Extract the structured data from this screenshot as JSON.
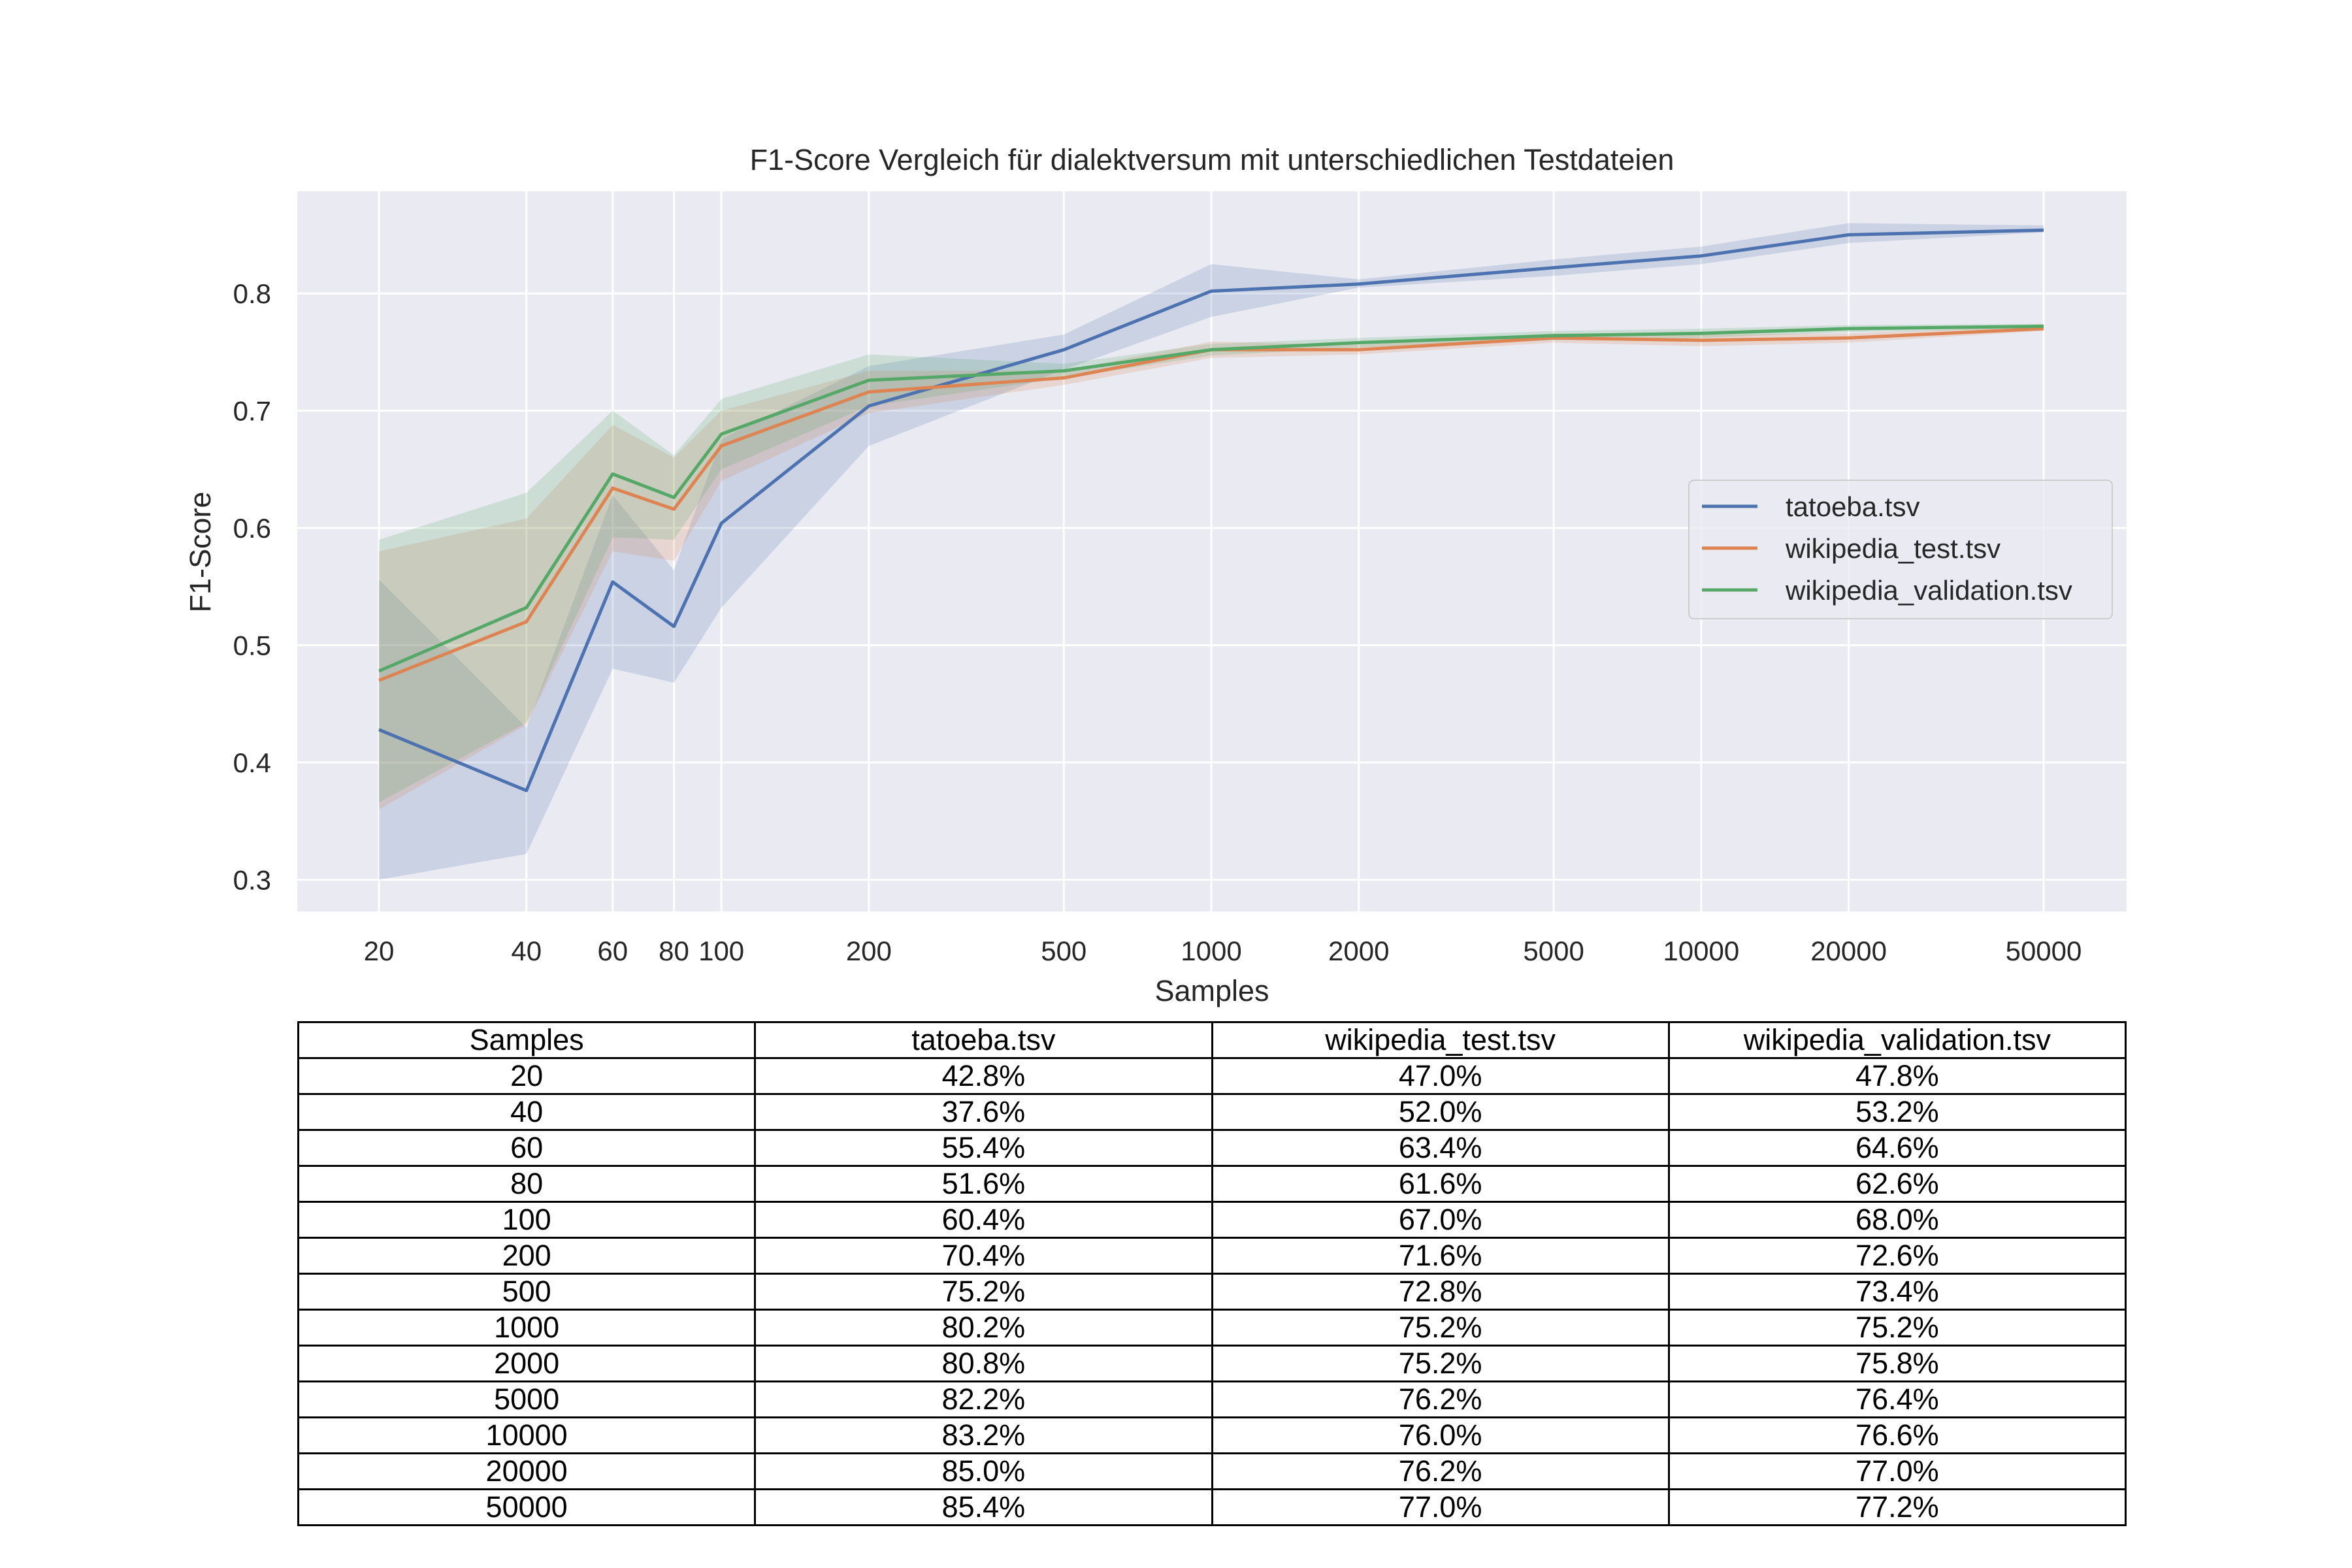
{
  "chart_data": {
    "type": "line",
    "title": "F1-Score Vergleich für dialektversum mit unterschiedlichen Testdateien",
    "xlabel": "Samples",
    "ylabel": "F1-Score",
    "x_scale": "log",
    "x": [
      20,
      40,
      60,
      80,
      100,
      200,
      500,
      1000,
      2000,
      5000,
      10000,
      20000,
      50000
    ],
    "x_tick_labels": [
      "20",
      "40",
      "60",
      "80",
      "100",
      "200",
      "500",
      "1000",
      "2000",
      "5000",
      "10000",
      "20000",
      "50000"
    ],
    "y_ticks": [
      "0.3",
      "0.4",
      "0.5",
      "0.6",
      "0.7",
      "0.8"
    ],
    "ylim": [
      0.273,
      0.887
    ],
    "grid": true,
    "legend_position": "center-right",
    "series": [
      {
        "name": "tatoeba.tsv",
        "color": "#4c72b0",
        "values": [
          0.428,
          0.376,
          0.554,
          0.516,
          0.604,
          0.704,
          0.752,
          0.802,
          0.808,
          0.822,
          0.832,
          0.85,
          0.854
        ],
        "band_lower": [
          0.3,
          0.322,
          0.48,
          0.468,
          0.532,
          0.67,
          0.735,
          0.78,
          0.805,
          0.815,
          0.825,
          0.843,
          0.852
        ],
        "band_upper": [
          0.556,
          0.43,
          0.628,
          0.564,
          0.676,
          0.738,
          0.765,
          0.825,
          0.812,
          0.829,
          0.84,
          0.86,
          0.858
        ]
      },
      {
        "name": "wikipedia_test.tsv",
        "color": "#dd8452",
        "values": [
          0.47,
          0.52,
          0.634,
          0.616,
          0.67,
          0.716,
          0.728,
          0.752,
          0.752,
          0.762,
          0.76,
          0.762,
          0.77
        ],
        "band_lower": [
          0.36,
          0.432,
          0.58,
          0.572,
          0.64,
          0.698,
          0.722,
          0.745,
          0.748,
          0.758,
          0.755,
          0.758,
          0.768
        ],
        "band_upper": [
          0.58,
          0.608,
          0.688,
          0.66,
          0.7,
          0.734,
          0.734,
          0.759,
          0.756,
          0.766,
          0.765,
          0.766,
          0.772
        ]
      },
      {
        "name": "wikipedia_validation.tsv",
        "color": "#55a868",
        "values": [
          0.478,
          0.532,
          0.646,
          0.626,
          0.68,
          0.726,
          0.734,
          0.752,
          0.758,
          0.764,
          0.766,
          0.77,
          0.772
        ],
        "band_lower": [
          0.366,
          0.434,
          0.592,
          0.59,
          0.65,
          0.704,
          0.728,
          0.747,
          0.754,
          0.76,
          0.762,
          0.767,
          0.77
        ],
        "band_upper": [
          0.59,
          0.63,
          0.7,
          0.662,
          0.71,
          0.748,
          0.74,
          0.757,
          0.762,
          0.768,
          0.77,
          0.773,
          0.774
        ]
      }
    ]
  },
  "table": {
    "headers": [
      "Samples",
      "tatoeba.tsv",
      "wikipedia_test.tsv",
      "wikipedia_validation.tsv"
    ],
    "rows": [
      [
        "20",
        "42.8%",
        "47.0%",
        "47.8%"
      ],
      [
        "40",
        "37.6%",
        "52.0%",
        "53.2%"
      ],
      [
        "60",
        "55.4%",
        "63.4%",
        "64.6%"
      ],
      [
        "80",
        "51.6%",
        "61.6%",
        "62.6%"
      ],
      [
        "100",
        "60.4%",
        "67.0%",
        "68.0%"
      ],
      [
        "200",
        "70.4%",
        "71.6%",
        "72.6%"
      ],
      [
        "500",
        "75.2%",
        "72.8%",
        "73.4%"
      ],
      [
        "1000",
        "80.2%",
        "75.2%",
        "75.2%"
      ],
      [
        "2000",
        "80.8%",
        "75.2%",
        "75.8%"
      ],
      [
        "5000",
        "82.2%",
        "76.2%",
        "76.4%"
      ],
      [
        "10000",
        "83.2%",
        "76.0%",
        "76.6%"
      ],
      [
        "20000",
        "85.0%",
        "76.2%",
        "77.0%"
      ],
      [
        "50000",
        "85.4%",
        "77.0%",
        "77.2%"
      ]
    ]
  }
}
